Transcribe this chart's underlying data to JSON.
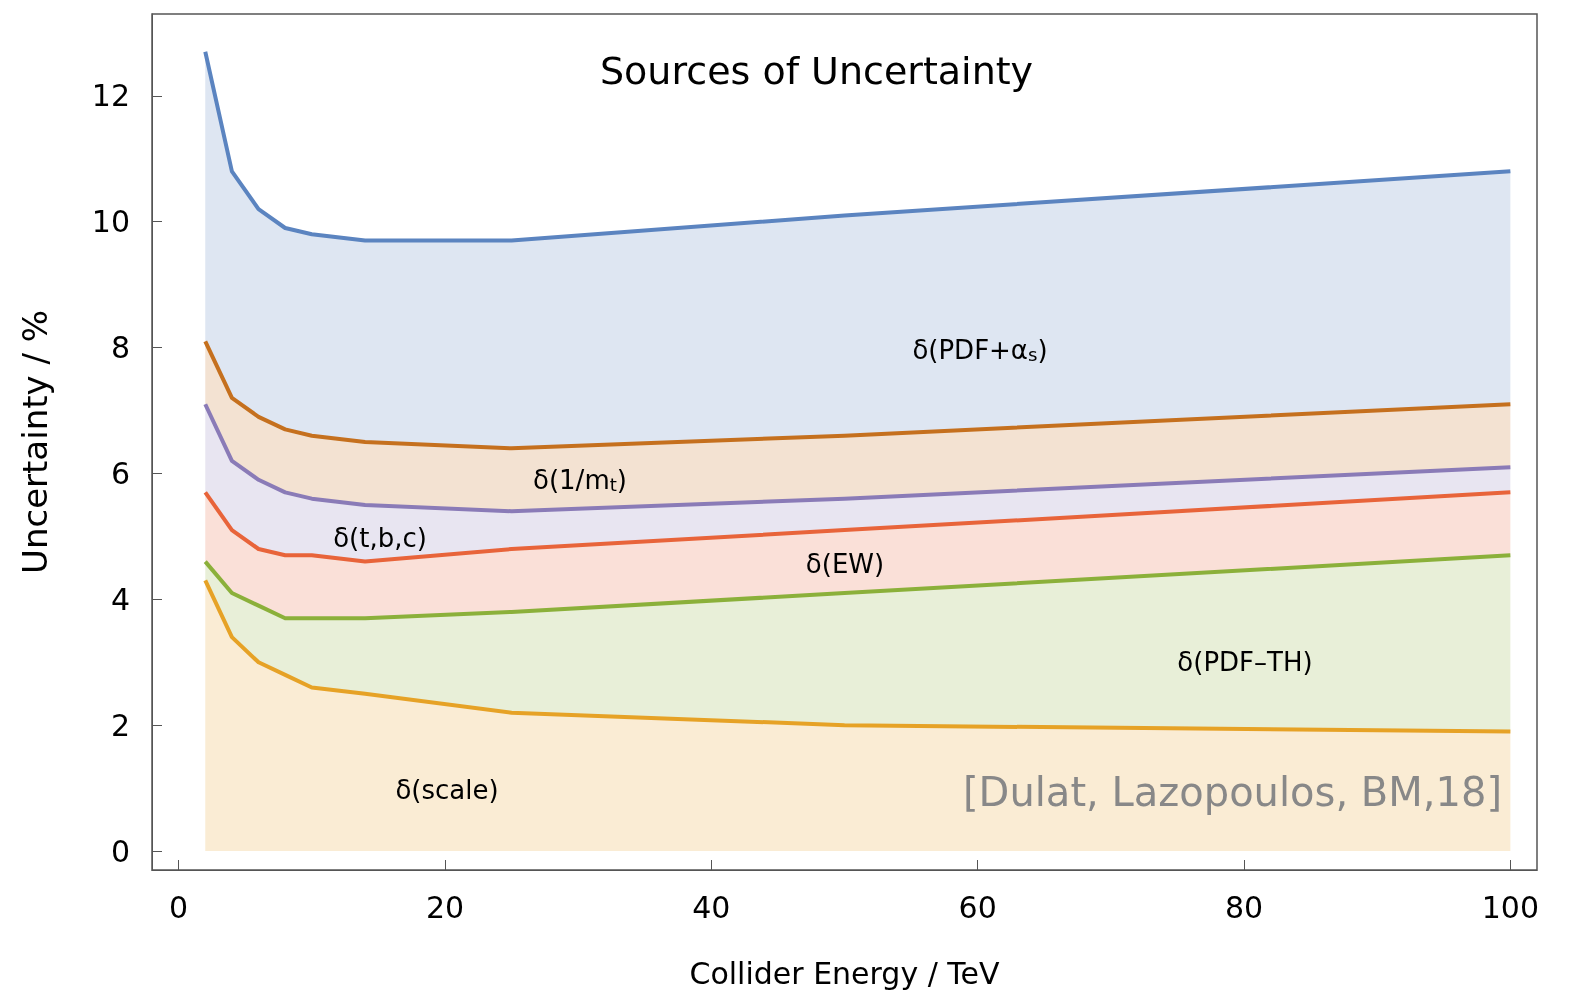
{
  "chart_data": {
    "type": "area",
    "stacked": true,
    "title": "Sources of Uncertainty",
    "xlabel": "Collider Energy / TeV",
    "ylabel": "Uncertainty / %",
    "x": [
      2,
      4,
      6,
      8,
      10,
      14,
      25,
      50,
      100
    ],
    "series": [
      {
        "color": "#e6a226",
        "values": [
          4.3,
          3.4,
          3.0,
          2.8,
          2.6,
          2.5,
          2.2,
          2.0,
          1.9
        ]
      },
      {
        "color": "#8bb03a",
        "values": [
          0.3,
          0.7,
          0.9,
          0.9,
          1.1,
          1.2,
          1.6,
          2.1,
          2.8
        ]
      },
      {
        "color": "#e8643a",
        "values": [
          1.1,
          1.0,
          0.9,
          1.0,
          1.0,
          0.9,
          1.0,
          1.0,
          1.0
        ]
      },
      {
        "color": "#8a7bb7",
        "values": [
          1.4,
          1.1,
          1.1,
          1.0,
          0.9,
          0.9,
          0.6,
          0.5,
          0.4
        ]
      },
      {
        "color": "#c5701e",
        "values": [
          1.0,
          1.0,
          1.0,
          1.0,
          1.0,
          1.0,
          1.0,
          1.0,
          1.0
        ]
      },
      {
        "color": "#5b84c0",
        "values": [
          4.6,
          3.6,
          3.3,
          3.2,
          3.2,
          3.2,
          3.3,
          3.5,
          3.7
        ]
      }
    ],
    "xlim": [
      -2,
      102
    ],
    "ylim": [
      -0.3,
      13.3
    ],
    "xticks": [
      0,
      20,
      40,
      60,
      80,
      100
    ],
    "yticks": [
      0,
      2,
      4,
      6,
      8,
      10,
      12
    ],
    "grid": false,
    "annotations": [
      "δ(PDF+α$_{s}$)",
      "δ(1/m$_{t}$)",
      "δ(t,b,c)",
      "δ(EW)",
      "δ(PDF–TH)",
      "δ(scale)",
      "[Dulat, Lazopoulos, BM,18]"
    ]
  }
}
